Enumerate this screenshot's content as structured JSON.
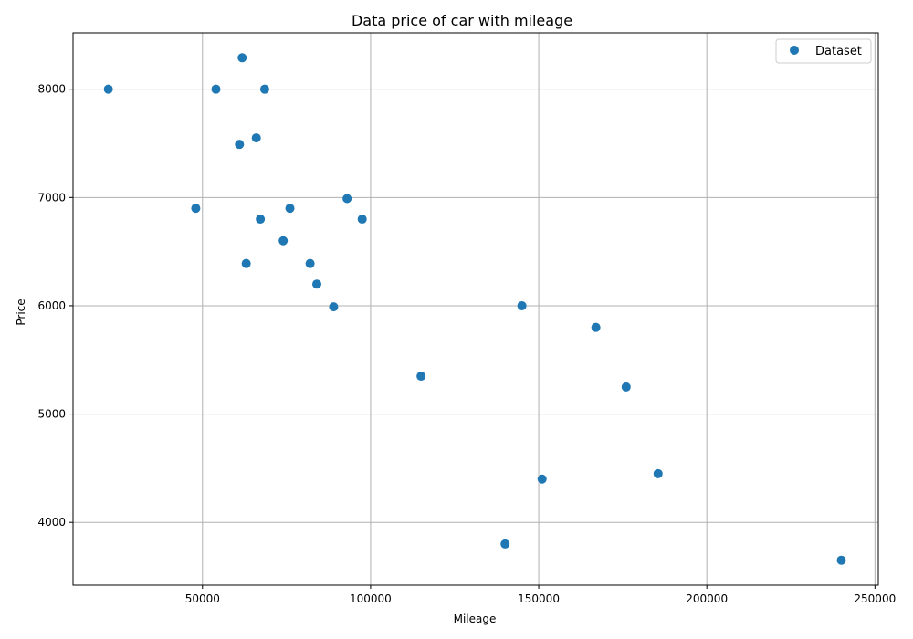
{
  "chart_data": {
    "type": "scatter",
    "title": "Data price of car with mileage",
    "xlabel": "Mileage",
    "ylabel": "Price",
    "xlim": [
      11500,
      251000
    ],
    "ylim": [
      3420,
      8520
    ],
    "xticks": [
      50000,
      100000,
      150000,
      200000,
      250000
    ],
    "yticks": [
      4000,
      5000,
      6000,
      7000,
      8000
    ],
    "grid": true,
    "legend_position": "top-right",
    "series": [
      {
        "name": "Dataset",
        "color": "#1f77b4",
        "points": [
          {
            "x": 22000,
            "y": 8000
          },
          {
            "x": 48000,
            "y": 6900
          },
          {
            "x": 54000,
            "y": 8000
          },
          {
            "x": 61000,
            "y": 7490
          },
          {
            "x": 61800,
            "y": 8290
          },
          {
            "x": 63000,
            "y": 6390
          },
          {
            "x": 66000,
            "y": 7550
          },
          {
            "x": 67200,
            "y": 6800
          },
          {
            "x": 68500,
            "y": 8000
          },
          {
            "x": 74000,
            "y": 6600
          },
          {
            "x": 76000,
            "y": 6900
          },
          {
            "x": 82000,
            "y": 6390
          },
          {
            "x": 84000,
            "y": 6200
          },
          {
            "x": 89000,
            "y": 5990
          },
          {
            "x": 93000,
            "y": 6990
          },
          {
            "x": 97500,
            "y": 6800
          },
          {
            "x": 115000,
            "y": 5350
          },
          {
            "x": 140000,
            "y": 3800
          },
          {
            "x": 145000,
            "y": 6000
          },
          {
            "x": 151000,
            "y": 4400
          },
          {
            "x": 167000,
            "y": 5800
          },
          {
            "x": 176000,
            "y": 5250
          },
          {
            "x": 185500,
            "y": 4450
          },
          {
            "x": 240000,
            "y": 3650
          }
        ]
      }
    ]
  }
}
